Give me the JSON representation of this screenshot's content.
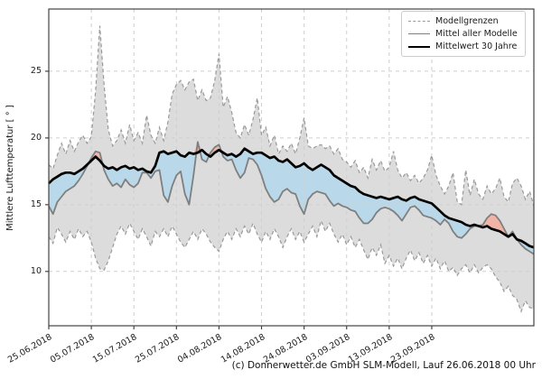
{
  "figure": {
    "ylabel": "Mittlere Lufttemperatur [ ° ]",
    "caption": "(c) Donnerwetter.de GmbH SLM-Modell, Lauf 26.06.2018 00 Uhr",
    "legend": [
      {
        "label": "Modellgrenzen",
        "style": "dashed",
        "color": "#999999"
      },
      {
        "label": "Mittel aller Modelle",
        "style": "solid",
        "color": "#7f7f7f"
      },
      {
        "label": "Mittelwert 30 Jahre",
        "style": "solid-thick",
        "color": "#000000"
      }
    ]
  },
  "chart_data": {
    "type": "line",
    "title": "",
    "xlabel": "",
    "ylabel": "Mittlere Lufttemperatur [ ° ]",
    "grid": true,
    "legend_position": "upper right",
    "x_start_date": "25.06.2018",
    "x_step_days": 1,
    "n_points": 115,
    "x_tick_labels": [
      "25.06.2018",
      "05.07.2018",
      "15.07.2018",
      "25.07.2018",
      "04.08.2018",
      "14.08.2018",
      "24.08.2018",
      "03.09.2018",
      "13.09.2018",
      "23.09.2018"
    ],
    "x_tick_day_index": [
      0,
      10,
      20,
      30,
      40,
      50,
      60,
      70,
      80,
      90
    ],
    "y_ticks": [
      10,
      15,
      20,
      25
    ],
    "ylim": [
      5.93,
      29.66
    ],
    "colors": {
      "band_fill": "#dcdcdc",
      "bound_line": "#999999",
      "model_mean_line": "#7f7f7f",
      "mean30_line": "#000000",
      "warmer_fill": "#f2b4a6",
      "cooler_fill": "#b9d9ea",
      "grid": "#cfcfcf",
      "spine": "#444444"
    },
    "series": [
      {
        "name": "Modellgrenzen (obere Grenze)",
        "values": [
          18.0,
          17.7,
          18.7,
          19.6,
          18.8,
          19.8,
          19.0,
          19.7,
          20.2,
          19.6,
          20.1,
          23.5,
          28.4,
          24.0,
          20.6,
          19.4,
          19.8,
          20.6,
          19.6,
          21.0,
          19.8,
          20.4,
          19.6,
          21.7,
          20.2,
          19.6,
          20.8,
          19.8,
          21.2,
          23.3,
          24.0,
          24.3,
          23.6,
          24.2,
          24.4,
          22.8,
          23.6,
          22.8,
          23.0,
          24.3,
          26.3,
          22.3,
          23.1,
          21.9,
          20.4,
          20.0,
          21.0,
          20.2,
          21.4,
          23.0,
          20.2,
          20.8,
          19.4,
          20.2,
          18.8,
          19.4,
          19.0,
          19.6,
          18.8,
          20.0,
          21.5,
          19.4,
          19.2,
          19.4,
          19.5,
          19.2,
          19.4,
          18.8,
          19.2,
          18.4,
          18.2,
          17.8,
          18.3,
          17.4,
          17.8,
          17.0,
          18.4,
          17.6,
          18.3,
          17.5,
          17.8,
          19.0,
          17.6,
          17.0,
          17.4,
          16.8,
          17.2,
          16.6,
          17.0,
          17.6,
          18.7,
          17.2,
          16.4,
          15.8,
          16.4,
          17.4,
          15.2,
          15.0,
          17.6,
          15.7,
          16.9,
          15.8,
          15.4,
          16.4,
          15.8,
          16.2,
          17.0,
          15.6,
          15.2,
          16.6,
          17.0,
          16.4,
          15.4,
          16.0,
          14.9
        ]
      },
      {
        "name": "Modellgrenzen (untere Grenze)",
        "values": [
          12.6,
          12.1,
          13.3,
          12.8,
          12.2,
          13.0,
          12.4,
          13.2,
          12.6,
          13.0,
          12.2,
          11.0,
          10.2,
          10.1,
          10.8,
          11.8,
          12.8,
          13.4,
          12.8,
          13.6,
          13.0,
          12.4,
          13.2,
          12.6,
          11.9,
          13.0,
          12.6,
          13.2,
          12.6,
          13.4,
          12.8,
          12.2,
          11.8,
          12.4,
          13.0,
          12.4,
          13.2,
          12.8,
          12.2,
          11.8,
          11.5,
          12.4,
          13.0,
          12.4,
          13.2,
          12.6,
          13.4,
          12.8,
          13.6,
          12.8,
          12.2,
          13.0,
          12.4,
          13.2,
          12.6,
          11.8,
          12.6,
          13.2,
          12.4,
          13.0,
          12.2,
          12.8,
          13.4,
          12.6,
          13.8,
          13.0,
          13.6,
          12.8,
          12.2,
          12.8,
          12.0,
          12.6,
          11.8,
          12.4,
          11.6,
          10.9,
          11.8,
          11.2,
          12.0,
          10.6,
          11.2,
          10.4,
          11.0,
          10.2,
          11.0,
          11.6,
          10.8,
          11.4,
          10.6,
          11.2,
          10.4,
          11.0,
          10.2,
          10.8,
          10.0,
          10.3,
          9.7,
          10.2,
          10.5,
          9.9,
          10.5,
          9.9,
          10.3,
          10.5,
          10.2,
          9.6,
          9.2,
          8.5,
          8.9,
          8.2,
          7.9,
          7.0,
          7.8,
          7.3,
          7.2
        ]
      },
      {
        "name": "Mittel aller Modelle",
        "values": [
          14.9,
          14.3,
          15.2,
          15.6,
          16.0,
          16.2,
          16.4,
          16.8,
          17.3,
          17.9,
          18.5,
          19.0,
          18.9,
          17.6,
          16.9,
          16.4,
          16.6,
          16.3,
          16.9,
          16.5,
          16.3,
          16.6,
          17.4,
          17.4,
          17.0,
          17.5,
          17.6,
          15.7,
          15.2,
          16.4,
          17.2,
          17.5,
          15.8,
          15.0,
          17.2,
          19.7,
          18.4,
          18.2,
          18.9,
          19.3,
          19.5,
          18.6,
          18.3,
          18.4,
          17.6,
          17.0,
          17.4,
          18.5,
          18.4,
          18.0,
          17.2,
          16.2,
          15.6,
          15.2,
          15.4,
          16.0,
          16.2,
          15.9,
          15.8,
          14.9,
          14.3,
          15.4,
          15.8,
          16.0,
          15.9,
          15.8,
          15.3,
          14.9,
          15.1,
          14.9,
          14.8,
          14.6,
          14.5,
          14.0,
          13.6,
          13.6,
          13.9,
          14.4,
          14.7,
          14.8,
          14.7,
          14.5,
          14.2,
          13.8,
          14.3,
          14.8,
          14.9,
          14.6,
          14.2,
          14.1,
          14.0,
          13.8,
          13.5,
          13.9,
          13.6,
          13.0,
          12.6,
          12.5,
          12.8,
          13.2,
          13.4,
          13.4,
          13.5,
          14.0,
          14.3,
          14.2,
          13.8,
          13.2,
          12.6,
          13.0,
          12.4,
          12.0,
          11.7,
          11.5,
          11.3
        ]
      },
      {
        "name": "Mittelwert 30 Jahre",
        "values": [
          16.6,
          16.9,
          17.1,
          17.3,
          17.4,
          17.4,
          17.3,
          17.5,
          17.7,
          18.0,
          18.3,
          18.6,
          18.3,
          17.9,
          17.7,
          17.8,
          17.6,
          17.8,
          17.9,
          17.7,
          17.8,
          17.6,
          17.7,
          17.5,
          17.4,
          17.9,
          18.9,
          19.0,
          18.8,
          18.9,
          19.0,
          18.7,
          18.6,
          18.9,
          18.8,
          18.9,
          19.1,
          18.8,
          18.6,
          18.9,
          19.1,
          18.9,
          18.7,
          18.8,
          18.6,
          18.8,
          19.2,
          19.0,
          18.8,
          18.9,
          18.9,
          18.7,
          18.5,
          18.6,
          18.3,
          18.2,
          18.4,
          18.1,
          17.8,
          17.9,
          18.1,
          17.8,
          17.6,
          17.8,
          18.0,
          17.8,
          17.6,
          17.2,
          17.0,
          16.8,
          16.6,
          16.4,
          16.3,
          16.0,
          15.8,
          15.7,
          15.6,
          15.5,
          15.6,
          15.5,
          15.4,
          15.5,
          15.6,
          15.4,
          15.3,
          15.5,
          15.6,
          15.4,
          15.3,
          15.2,
          15.1,
          14.8,
          14.5,
          14.2,
          14.0,
          13.9,
          13.8,
          13.7,
          13.5,
          13.4,
          13.5,
          13.4,
          13.3,
          13.4,
          13.2,
          13.1,
          13.0,
          12.8,
          12.6,
          12.8,
          12.4,
          12.3,
          12.1,
          11.9,
          11.8
        ]
      }
    ]
  }
}
